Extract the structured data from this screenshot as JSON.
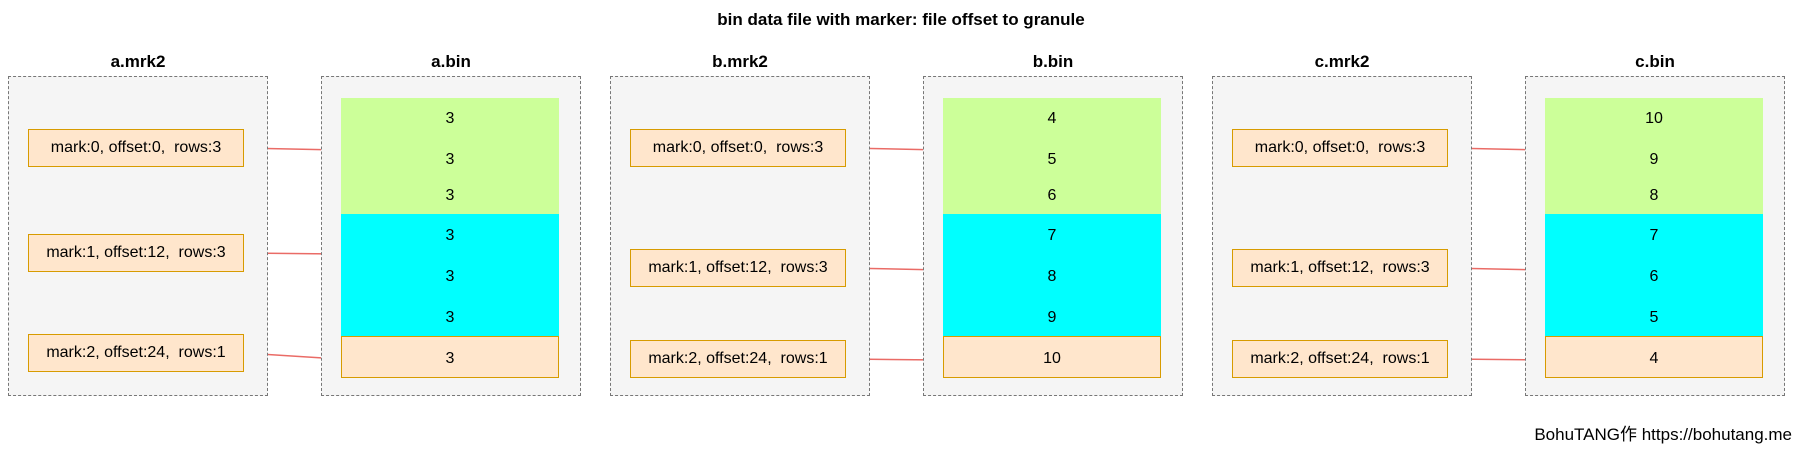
{
  "title": "bin data file with marker: file offset to granule",
  "footer": "BohuTANG作 https://bohutang.me",
  "colors": {
    "group_border": "#777777",
    "group_fill": "#f5f5f5",
    "mark_fill": "#ffe6cc",
    "mark_border": "#d79b00",
    "granule_1": "#ccff99",
    "granule_2": "#00ffff",
    "granule_3": "#ffe6cc",
    "arrow": "#ea6b66"
  },
  "columns": [
    {
      "id": "a",
      "mrk_label": "a.mrk2",
      "bin_label": "a.bin",
      "marks": [
        "mark:0, offset:0,  rows:3",
        "mark:1, offset:12,  rows:3",
        "mark:2, offset:24,  rows:1"
      ],
      "values": [
        "3",
        "3",
        "3",
        "3",
        "3",
        "3",
        "3"
      ]
    },
    {
      "id": "b",
      "mrk_label": "b.mrk2",
      "bin_label": "b.bin",
      "marks": [
        "mark:0, offset:0,  rows:3",
        "mark:1, offset:12,  rows:3",
        "mark:2, offset:24,  rows:1"
      ],
      "values": [
        "4",
        "5",
        "6",
        "7",
        "8",
        "9",
        "10"
      ]
    },
    {
      "id": "c",
      "mrk_label": "c.mrk2",
      "bin_label": "c.bin",
      "marks": [
        "mark:0, offset:0,  rows:3",
        "mark:1, offset:12,  rows:3",
        "mark:2, offset:24,  rows:1"
      ],
      "values": [
        "10",
        "9",
        "8",
        "7",
        "6",
        "5",
        "4"
      ]
    }
  ]
}
